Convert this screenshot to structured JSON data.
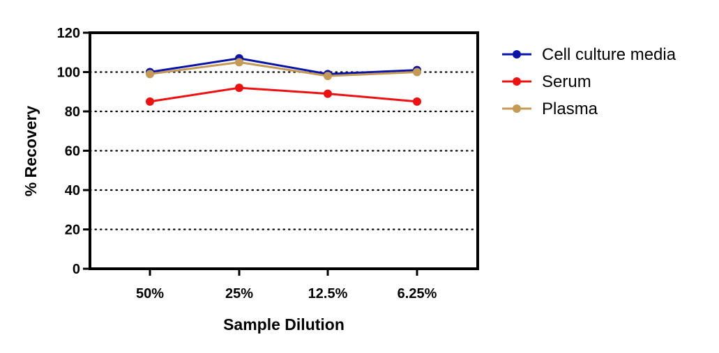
{
  "chart_data": {
    "type": "line",
    "categories": [
      "50%",
      "25%",
      "12.5%",
      "6.25%"
    ],
    "series": [
      {
        "name": "Cell culture media",
        "color": "#0a14a8",
        "values": [
          100,
          107,
          99,
          101
        ]
      },
      {
        "name": "Serum",
        "color": "#ee1111",
        "values": [
          85,
          92,
          89,
          85
        ]
      },
      {
        "name": "Plasma",
        "color": "#c49a55",
        "values": [
          99,
          105,
          98,
          100
        ]
      }
    ],
    "title": "",
    "xlabel": "Sample Dilution",
    "ylabel": "% Recovery",
    "ylim": [
      0,
      120
    ],
    "yticks": [
      0,
      20,
      40,
      60,
      80,
      100,
      120
    ],
    "grid": "horizontal dotted",
    "legend": "right"
  }
}
